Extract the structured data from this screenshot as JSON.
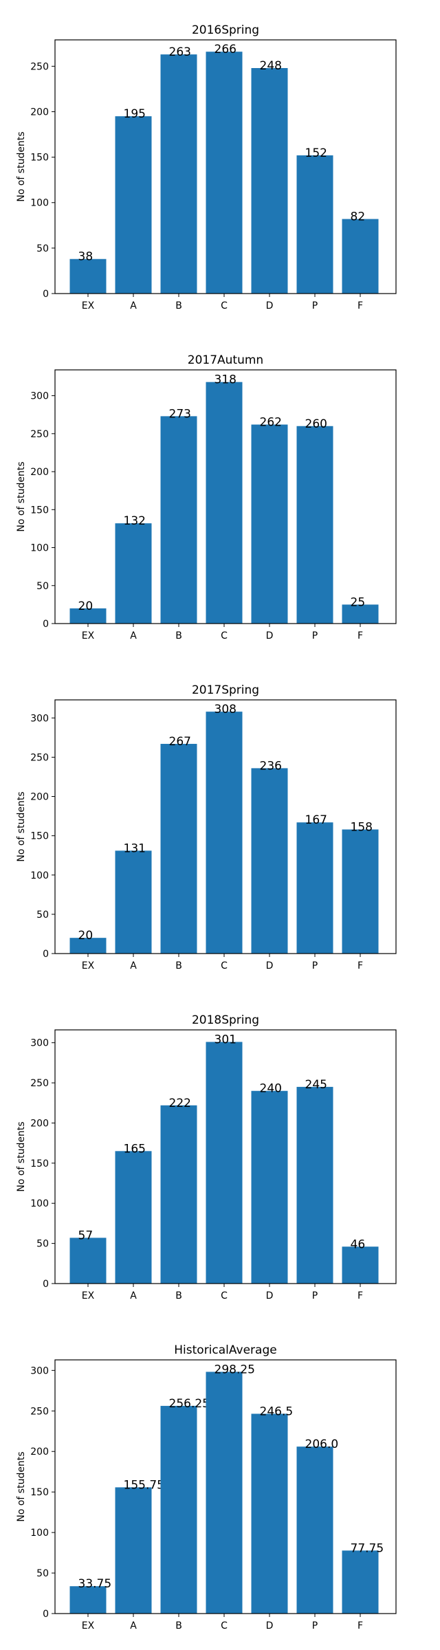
{
  "chart_data": [
    {
      "type": "bar",
      "title": "2016Spring",
      "ylabel": "No of students",
      "xlabel": "",
      "categories": [
        "EX",
        "A",
        "B",
        "C",
        "D",
        "P",
        "F"
      ],
      "values": [
        38,
        195,
        263,
        266,
        248,
        152,
        82
      ],
      "value_labels": [
        "38",
        "195",
        "263",
        "266",
        "248",
        "152",
        "82"
      ],
      "ylim": [
        0,
        279
      ],
      "yticks": [
        0,
        50,
        100,
        150,
        200,
        250
      ],
      "bar_color": "#1f77b4",
      "grid": false
    },
    {
      "type": "bar",
      "title": "2017Autumn",
      "ylabel": "No of students",
      "xlabel": "",
      "categories": [
        "EX",
        "A",
        "B",
        "C",
        "D",
        "P",
        "F"
      ],
      "values": [
        20,
        132,
        273,
        318,
        262,
        260,
        25
      ],
      "value_labels": [
        "20",
        "132",
        "273",
        "318",
        "262",
        "260",
        "25"
      ],
      "ylim": [
        0,
        334
      ],
      "yticks": [
        0,
        50,
        100,
        150,
        200,
        250,
        300
      ],
      "bar_color": "#1f77b4",
      "grid": false
    },
    {
      "type": "bar",
      "title": "2017Spring",
      "ylabel": "No of students",
      "xlabel": "",
      "categories": [
        "EX",
        "A",
        "B",
        "C",
        "D",
        "P",
        "F"
      ],
      "values": [
        20,
        131,
        267,
        308,
        236,
        167,
        158
      ],
      "value_labels": [
        "20",
        "131",
        "267",
        "308",
        "236",
        "167",
        "158"
      ],
      "ylim": [
        0,
        323
      ],
      "yticks": [
        0,
        50,
        100,
        150,
        200,
        250,
        300
      ],
      "bar_color": "#1f77b4",
      "grid": false
    },
    {
      "type": "bar",
      "title": "2018Spring",
      "ylabel": "No of students",
      "xlabel": "",
      "categories": [
        "EX",
        "A",
        "B",
        "C",
        "D",
        "P",
        "F"
      ],
      "values": [
        57,
        165,
        222,
        301,
        240,
        245,
        46
      ],
      "value_labels": [
        "57",
        "165",
        "222",
        "301",
        "240",
        "245",
        "46"
      ],
      "ylim": [
        0,
        316
      ],
      "yticks": [
        0,
        50,
        100,
        150,
        200,
        250,
        300
      ],
      "bar_color": "#1f77b4",
      "grid": false
    },
    {
      "type": "bar",
      "title": "HistoricalAverage",
      "ylabel": "No of students",
      "xlabel": "",
      "categories": [
        "EX",
        "A",
        "B",
        "C",
        "D",
        "P",
        "F"
      ],
      "values": [
        33.75,
        155.75,
        256.25,
        298.25,
        246.5,
        206.0,
        77.75
      ],
      "value_labels": [
        "33.75",
        "155.75",
        "256.25",
        "298.25",
        "246.5",
        "206.0",
        "77.75"
      ],
      "ylim": [
        0,
        313
      ],
      "yticks": [
        0,
        50,
        100,
        150,
        200,
        250,
        300
      ],
      "bar_color": "#1f77b4",
      "grid": false
    }
  ]
}
